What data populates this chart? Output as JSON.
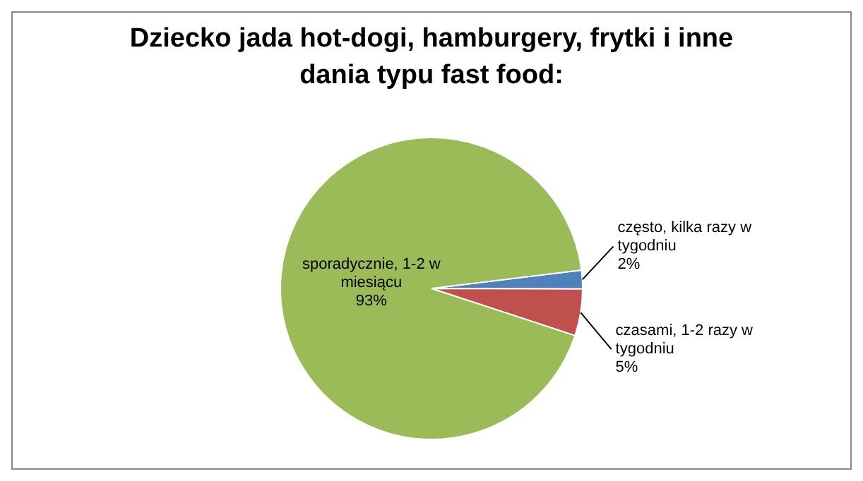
{
  "chart_data": {
    "type": "pie",
    "title": "Dziecko jada hot-dogi, hamburgery, frytki i inne dania typu fast food:",
    "categories": [
      "często, kilka razy w tygodniu",
      "czasami, 1-2 razy w tygodniu",
      "sporadycznie, 1-2 w miesiącu"
    ],
    "values": [
      2,
      5,
      93
    ],
    "colors": [
      "#4f81bd",
      "#c0504d",
      "#9bbb59"
    ],
    "value_labels": [
      "2%",
      "5%",
      "93%"
    ],
    "legend": false
  }
}
